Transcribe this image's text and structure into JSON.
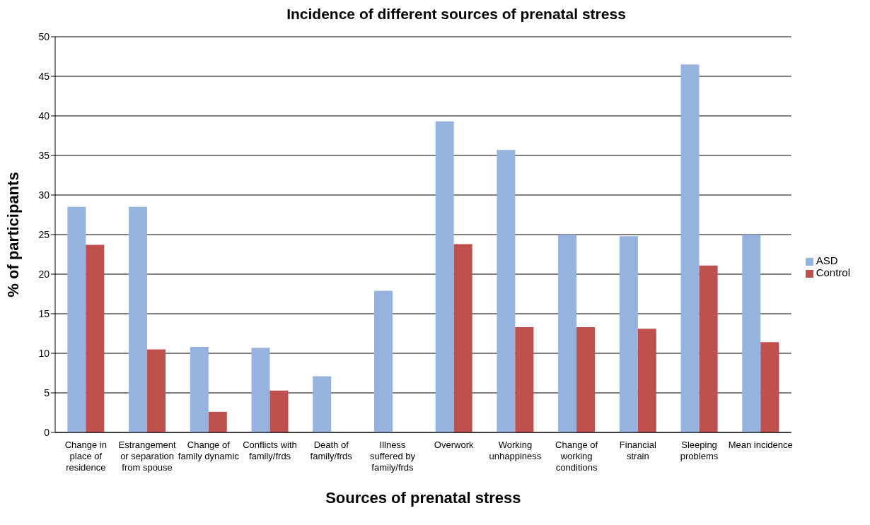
{
  "chart_data": {
    "type": "bar",
    "title": "Incidence of different sources of prenatal stress",
    "xlabel": "Sources of prenatal stress",
    "ylabel": "% of participants",
    "categories": [
      "Change in place of residence",
      "Estrangement or separation from spouse",
      "Change of family dynamic",
      "Conflicts with family/frds",
      "Death of family/frds",
      "Illness suffered by family/frds",
      "Overwork",
      "Working unhappiness",
      "Change of working conditions",
      "Financial strain",
      "Sleeping problems",
      "Mean incidence"
    ],
    "series": [
      {
        "name": "ASD",
        "color": "#95b3de",
        "values": [
          28.5,
          28.5,
          10.8,
          10.7,
          7.1,
          17.9,
          39.3,
          35.7,
          25.0,
          24.8,
          46.5,
          25.0
        ]
      },
      {
        "name": "Control",
        "color": "#c0504d",
        "values": [
          23.7,
          10.5,
          2.6,
          5.3,
          0,
          0,
          23.8,
          13.3,
          13.3,
          13.1,
          21.1,
          11.4
        ]
      }
    ],
    "ylim": [
      0,
      50
    ],
    "yticks": [
      0,
      5,
      10,
      15,
      20,
      25,
      30,
      35,
      40,
      45,
      50
    ],
    "grid": "y",
    "legend": "right"
  }
}
